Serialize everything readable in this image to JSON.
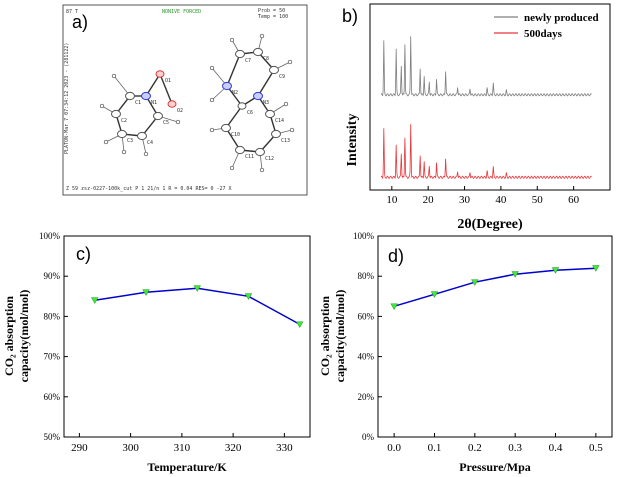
{
  "figure": {
    "panel_a": {
      "letter": "a)",
      "header_left": "87 T",
      "header_center": "NONIVE FORCED",
      "header_right_1": "Prob = 50",
      "header_right_2": "Temp = 100",
      "side_text": "PLATON-Mar 7 07:34:12 2023 - (281122)",
      "footer": "Z 59    zsz-0227-100k_cut P 1 21/n 1    R = 0.04    RES= 0 -27 X",
      "atom_labels": [
        "O1",
        "N1",
        "O2",
        "C1",
        "C2",
        "C3",
        "C4",
        "C5",
        "C6",
        "N2",
        "N3",
        "C7",
        "C8",
        "C9",
        "C10",
        "C11",
        "C12",
        "C13",
        "C14"
      ]
    }
  },
  "chart_data": [
    {
      "panel": "b)",
      "type": "line",
      "xlabel": "2θ(Degree)",
      "ylabel": "Intensity",
      "xlim": [
        4,
        70
      ],
      "xticks": [
        10,
        20,
        30,
        40,
        50,
        60
      ],
      "series": [
        {
          "name": "newly produced",
          "color": "#7f7f7f",
          "offset": 0.55,
          "peaks": [
            [
              7.8,
              1.0
            ],
            [
              11.2,
              0.85
            ],
            [
              12.6,
              0.55
            ],
            [
              13.6,
              0.95
            ],
            [
              15.2,
              1.1
            ],
            [
              17.8,
              0.5
            ],
            [
              18.9,
              0.35
            ],
            [
              20.3,
              0.25
            ],
            [
              22.3,
              0.3
            ],
            [
              24.8,
              0.45
            ],
            [
              28.1,
              0.15
            ],
            [
              31.5,
              0.12
            ],
            [
              36.2,
              0.13
            ],
            [
              37.9,
              0.22
            ],
            [
              41.5,
              0.08
            ]
          ]
        },
        {
          "name": "500days",
          "color": "#e8363a",
          "offset": 0.0,
          "peaks": [
            [
              7.8,
              0.9
            ],
            [
              11.2,
              0.6
            ],
            [
              12.6,
              0.45
            ],
            [
              13.6,
              0.75
            ],
            [
              15.2,
              1.0
            ],
            [
              17.8,
              0.42
            ],
            [
              18.9,
              0.3
            ],
            [
              20.3,
              0.22
            ],
            [
              22.3,
              0.28
            ],
            [
              24.8,
              0.36
            ],
            [
              28.1,
              0.12
            ],
            [
              31.5,
              0.1
            ],
            [
              36.2,
              0.12
            ],
            [
              37.9,
              0.2
            ],
            [
              41.5,
              0.07
            ]
          ]
        }
      ]
    },
    {
      "panel": "c)",
      "type": "line",
      "xlabel": "Temperature/K",
      "ylabel_line1": "CO₂ absorption",
      "ylabel_line2": "capacity(mol/mol)",
      "x": [
        293,
        303,
        313,
        323,
        333
      ],
      "y": [
        84,
        86,
        87,
        85,
        78
      ],
      "xlim": [
        287,
        335
      ],
      "ylim": [
        50,
        100
      ],
      "xticks": [
        290,
        300,
        310,
        320,
        330
      ],
      "yticks": [
        50,
        60,
        70,
        80,
        90,
        100
      ],
      "ytick_labels": [
        "50%",
        "60%",
        "70%",
        "80%",
        "90%",
        "100%"
      ],
      "line_color": "#0000cc",
      "marker_color": "#44e83a"
    },
    {
      "panel": "d)",
      "type": "line",
      "xlabel": "Pressure/Mpa",
      "ylabel_line1": "CO₂ absorption",
      "ylabel_line2": "capacity(mol/mol)",
      "x": [
        0.0,
        0.1,
        0.2,
        0.3,
        0.4,
        0.5
      ],
      "y": [
        65,
        71,
        77,
        81,
        83,
        84
      ],
      "xlim": [
        -0.04,
        0.54
      ],
      "ylim": [
        0,
        100
      ],
      "xticks": [
        0.0,
        0.1,
        0.2,
        0.3,
        0.4,
        0.5
      ],
      "xtick_labels": [
        "0.0",
        "0.1",
        "0.2",
        "0.3",
        "0.4",
        "0.5"
      ],
      "yticks": [
        0,
        20,
        40,
        60,
        80,
        100
      ],
      "ytick_labels": [
        "0%",
        "20%",
        "40%",
        "60%",
        "80%",
        "100%"
      ],
      "line_color": "#0000cc",
      "marker_color": "#44e83a"
    }
  ]
}
